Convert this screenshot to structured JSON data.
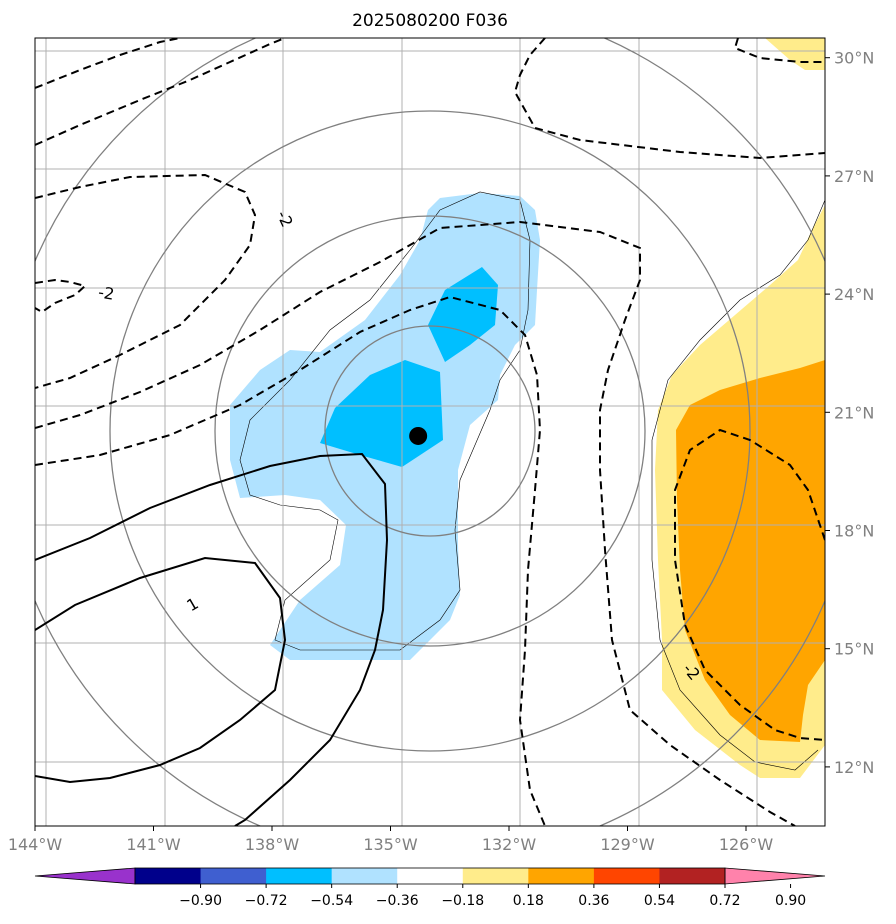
{
  "title": "2025080200 F036",
  "map": {
    "lon_range": [
      -144,
      -124
    ],
    "lat_range": [
      10.5,
      30.5
    ],
    "lon_ticks": [
      {
        "value": -144,
        "label": "144°W"
      },
      {
        "value": -141,
        "label": "141°W"
      },
      {
        "value": -138,
        "label": "138°W"
      },
      {
        "value": -135,
        "label": "135°W"
      },
      {
        "value": -132,
        "label": "132°W"
      },
      {
        "value": -129,
        "label": "129°W"
      },
      {
        "value": -126,
        "label": "126°W"
      }
    ],
    "lat_ticks": [
      {
        "value": 30,
        "label": "30°N"
      },
      {
        "value": 27,
        "label": "27°N"
      },
      {
        "value": 24,
        "label": "24°N"
      },
      {
        "value": 21,
        "label": "21°N"
      },
      {
        "value": 18,
        "label": "18°N"
      },
      {
        "value": 15,
        "label": "15°N"
      },
      {
        "value": 12,
        "label": "12°N"
      }
    ],
    "storm_center": {
      "lon": -134.3,
      "lat": 20.4
    },
    "contour_labels": [
      {
        "text": "-2",
        "lon": -137.7,
        "lat": 25.9,
        "angle": 65
      },
      {
        "text": "-2",
        "lon": -142.2,
        "lat": 24.0,
        "angle": 10
      },
      {
        "text": "1",
        "lon": -140.0,
        "lat": 16.1,
        "angle": -30
      },
      {
        "text": "-2",
        "lon": -127.4,
        "lat": 14.4,
        "angle": 50
      }
    ]
  },
  "colorbar": {
    "levels": [
      "-0.90",
      "-0.72",
      "-0.54",
      "-0.36",
      "-0.18",
      "0.18",
      "0.36",
      "0.54",
      "0.72",
      "0.90"
    ],
    "colors": [
      "#9932cc",
      "#00008b",
      "#3f5fd0",
      "#00bfff",
      "#b0e2ff",
      "#ffffff",
      "#ffec8b",
      "#ffa500",
      "#ff4500",
      "#b22222",
      "#ff82ab"
    ]
  }
}
